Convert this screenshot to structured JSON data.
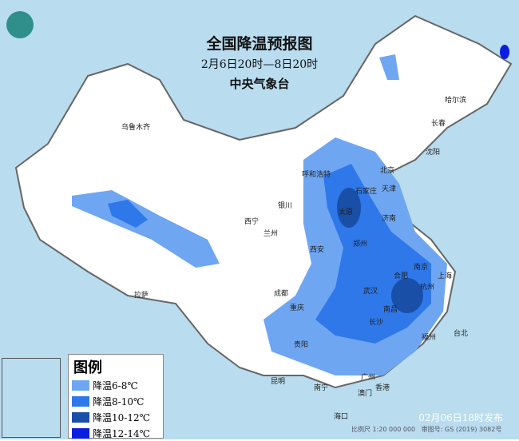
{
  "header": {
    "title": "全国降温预报图",
    "period": "2月6日20时—8日20时",
    "agency": "中央气象台"
  },
  "legend": {
    "title": "图例",
    "items": [
      {
        "label": "降温6-8℃",
        "color": "#6fa6f2"
      },
      {
        "label": "降温8-10℃",
        "color": "#2e78ea"
      },
      {
        "label": "降温10-12℃",
        "color": "#1a4fa8"
      },
      {
        "label": "降温12-14℃",
        "color": "#0a1ee0"
      }
    ]
  },
  "cities": [
    {
      "name": "乌鲁木齐"
    },
    {
      "name": "拉萨"
    },
    {
      "name": "西宁"
    },
    {
      "name": "兰州"
    },
    {
      "name": "银川"
    },
    {
      "name": "呼和浩特"
    },
    {
      "name": "北京"
    },
    {
      "name": "天津"
    },
    {
      "name": "石家庄"
    },
    {
      "name": "太原"
    },
    {
      "name": "济南"
    },
    {
      "name": "郑州"
    },
    {
      "name": "西安"
    },
    {
      "name": "成都"
    },
    {
      "name": "重庆"
    },
    {
      "name": "贵阳"
    },
    {
      "name": "昆明"
    },
    {
      "name": "南宁"
    },
    {
      "name": "广州"
    },
    {
      "name": "香港"
    },
    {
      "name": "澳门"
    },
    {
      "name": "海口"
    },
    {
      "name": "长沙"
    },
    {
      "name": "武汉"
    },
    {
      "name": "合肥"
    },
    {
      "name": "南京"
    },
    {
      "name": "上海"
    },
    {
      "name": "杭州"
    },
    {
      "name": "南昌"
    },
    {
      "name": "福州"
    },
    {
      "name": "台北"
    },
    {
      "name": "沈阳"
    },
    {
      "name": "长春"
    },
    {
      "name": "哈尔滨"
    }
  ],
  "footer": {
    "issued": "02月06日18时发布",
    "scale": "比例尺 1:20 000 000",
    "map_no": "审图号: GS (2019) 3082号"
  }
}
